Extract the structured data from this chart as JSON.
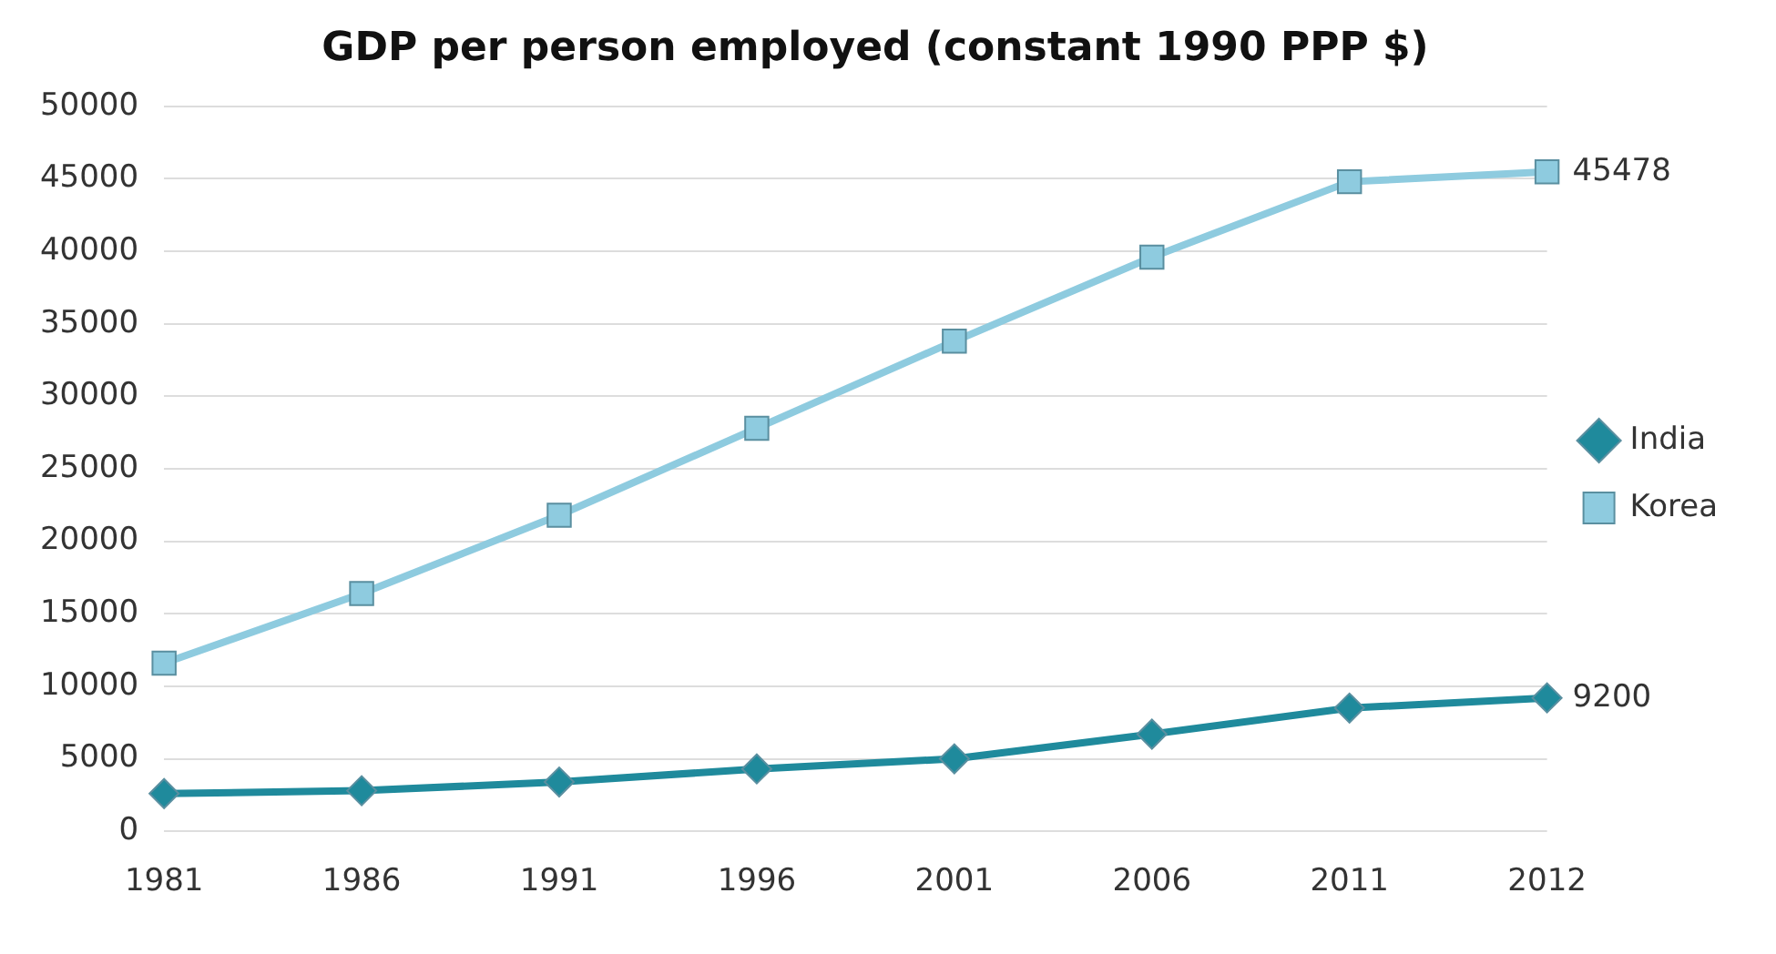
{
  "chart_data": {
    "type": "line",
    "title": "GDP per person employed (constant 1990 PPP $)",
    "categories": [
      "1981",
      "1986",
      "1991",
      "1996",
      "2001",
      "2006",
      "2011",
      "2012"
    ],
    "series": [
      {
        "name": "India",
        "color": "#1f8a9c",
        "marker": "diamond",
        "values": [
          2600,
          2800,
          3400,
          4300,
          5000,
          6700,
          8500,
          9200
        ],
        "value_labels": [
          null,
          null,
          null,
          null,
          null,
          null,
          null,
          "9200"
        ]
      },
      {
        "name": "Korea",
        "color": "#8ecbdf",
        "marker": "square",
        "values": [
          11600,
          16400,
          21800,
          27800,
          33800,
          39600,
          44800,
          45478
        ],
        "value_labels": [
          null,
          null,
          null,
          null,
          null,
          null,
          null,
          "45478"
        ]
      }
    ],
    "ylim": [
      0,
      50000
    ],
    "yticks": [
      0,
      5000,
      10000,
      15000,
      20000,
      25000,
      30000,
      35000,
      40000,
      45000,
      50000
    ],
    "grid": "y",
    "legend": "right"
  }
}
